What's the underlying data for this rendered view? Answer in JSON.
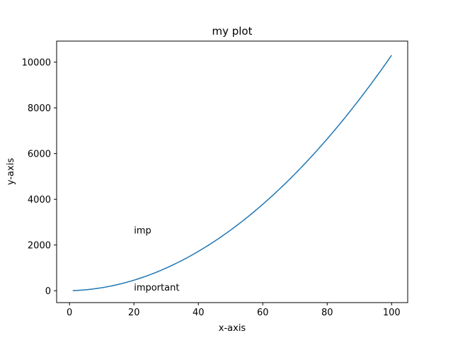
{
  "chart_data": {
    "type": "line",
    "title": "my plot",
    "xlabel": "x-axis",
    "ylabel": "y-axis",
    "xlim": [
      -4,
      105
    ],
    "ylim": [
      -520,
      10920
    ],
    "x_ticks": [
      0,
      20,
      40,
      60,
      80,
      100
    ],
    "y_ticks": [
      0,
      2000,
      4000,
      6000,
      8000,
      10000
    ],
    "grid": false,
    "series": [
      {
        "color": "#1f77b4",
        "function": "x*x + 3*x + 1",
        "x_start": 1,
        "x_end": 100
      }
    ],
    "annotations": [
      {
        "text": "imp",
        "x": 20,
        "y": 2500
      },
      {
        "text": "important",
        "x": 20,
        "y": 0
      }
    ]
  }
}
